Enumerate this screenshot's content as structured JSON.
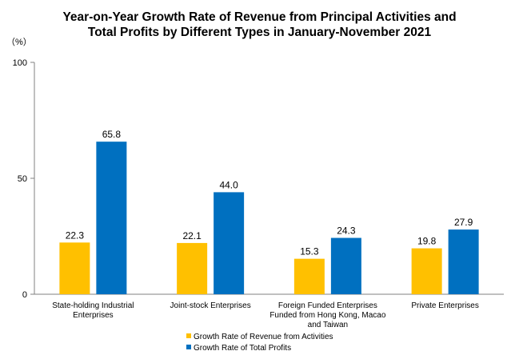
{
  "chart_data": {
    "type": "bar",
    "title_lines": [
      "Year-on-Year Growth Rate of Revenue from Principal Activities  and",
      "Total Profits  by Different Types in January-November 2021"
    ],
    "unit_label": "（%）",
    "categories": [
      [
        "State-holding Industrial",
        "Enterprises"
      ],
      [
        "Joint-stock Enterprises"
      ],
      [
        "Foreign Funded Enterprises",
        "Funded from Hong Kong, Macao",
        "and Taiwan"
      ],
      [
        "Private Enterprises"
      ]
    ],
    "series": [
      {
        "name": "Growth Rate of Revenue from Activities",
        "color": "#FFC000",
        "values": [
          22.3,
          22.1,
          15.3,
          19.8
        ]
      },
      {
        "name": "Growth Rate of Total Profits",
        "color": "#0070C0",
        "values": [
          65.8,
          44.0,
          24.3,
          27.9
        ]
      }
    ],
    "yticks": [
      0,
      50,
      100
    ],
    "ylim": [
      0,
      100
    ],
    "grid": false,
    "legend_position": "bottom"
  }
}
